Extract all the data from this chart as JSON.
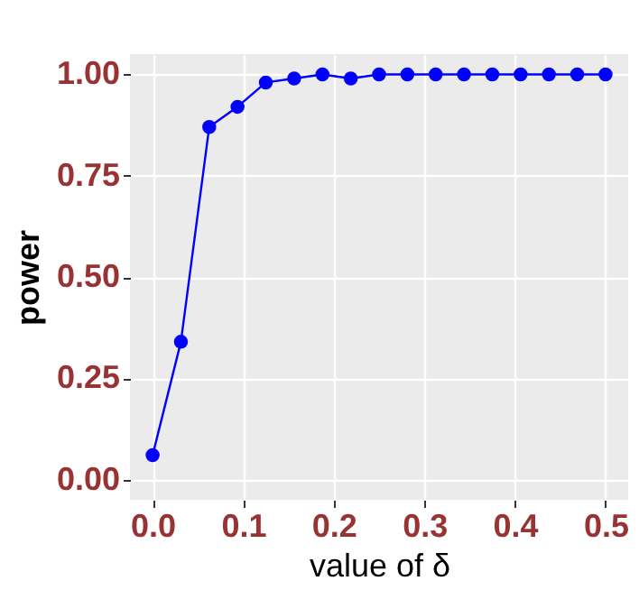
{
  "chart_data": {
    "type": "line",
    "xlabel": "value of δ",
    "ylabel": "power",
    "x": [
      0,
      0.03125,
      0.0625,
      0.09375,
      0.125,
      0.15625,
      0.1875,
      0.21875,
      0.25,
      0.28125,
      0.3125,
      0.34375,
      0.375,
      0.40625,
      0.4375,
      0.46875,
      0.5
    ],
    "series": [
      {
        "color": "#0000ff",
        "values": [
          0.06,
          0.34,
          0.87,
          0.92,
          0.98,
          0.99,
          1.0,
          0.99,
          1.0,
          1.0,
          1.0,
          1.0,
          1.0,
          1.0,
          1.0,
          1.0,
          1.0
        ]
      }
    ],
    "xlim": [
      -0.025,
      0.525
    ],
    "ylim": [
      -0.05,
      1.05
    ],
    "xticks": [
      {
        "value": 0,
        "label": "0.0"
      },
      {
        "value": 0.1,
        "label": "0.1"
      },
      {
        "value": 0.2,
        "label": "0.2"
      },
      {
        "value": 0.3,
        "label": "0.3"
      },
      {
        "value": 0.4,
        "label": "0.4"
      },
      {
        "value": 0.5,
        "label": "0.5"
      }
    ],
    "yticks": [
      {
        "value": 0,
        "label": "0.00"
      },
      {
        "value": 0.25,
        "label": "0.25"
      },
      {
        "value": 0.5,
        "label": "0.50"
      },
      {
        "value": 0.75,
        "label": "0.75"
      },
      {
        "value": 1,
        "label": "1.00"
      }
    ],
    "grid": true,
    "marker": "circle",
    "line_style": "solid"
  }
}
